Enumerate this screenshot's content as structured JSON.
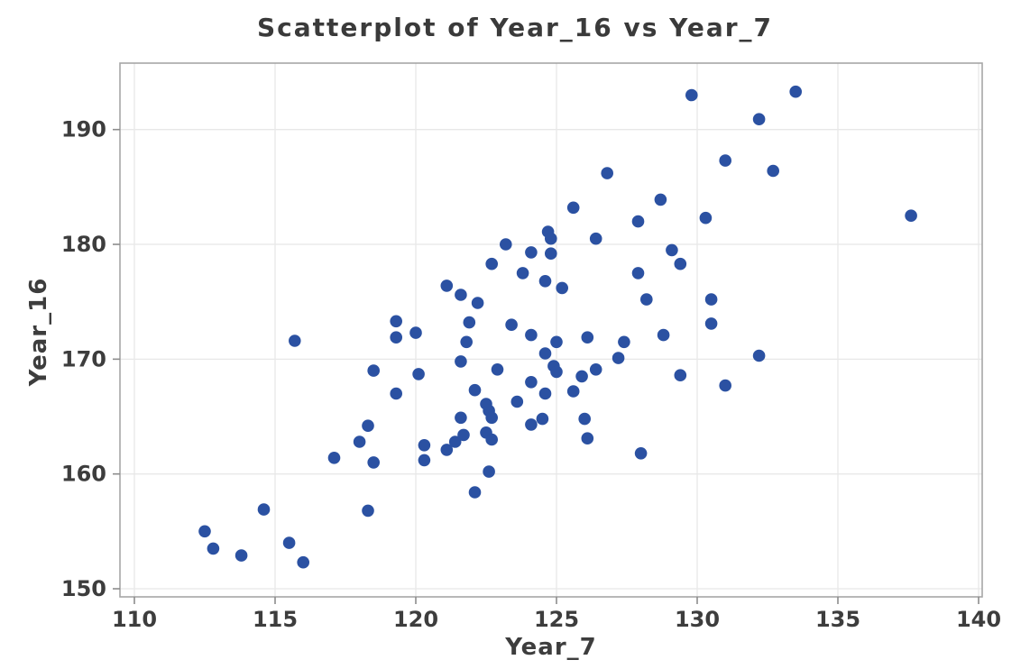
{
  "title": "Scatterplot of Year_16 vs Year_7",
  "colors": {
    "marker": "#2b51a2",
    "frame": "#a6a6a6",
    "gridline": "#e8e8e8",
    "tick": "#8c8c8c",
    "text": "#3d3d3d"
  },
  "chart_data": {
    "type": "scatter",
    "title": "Scatterplot of Year_16 vs Year_7",
    "xlabel": "Year_7",
    "ylabel": "Year_16",
    "xlim": [
      109.5,
      140.1
    ],
    "ylim": [
      149.3,
      195.8
    ],
    "x_ticks": [
      110,
      115,
      120,
      125,
      130,
      135,
      140
    ],
    "y_ticks": [
      150,
      160,
      170,
      180,
      190
    ],
    "grid": true,
    "legend": false,
    "marker_color": "#2b51a2",
    "points": [
      [
        112.5,
        155.0
      ],
      [
        112.8,
        153.5
      ],
      [
        113.8,
        152.9
      ],
      [
        114.6,
        156.9
      ],
      [
        115.5,
        154.0
      ],
      [
        116.0,
        152.3
      ],
      [
        115.7,
        171.6
      ],
      [
        117.1,
        161.4
      ],
      [
        118.0,
        162.8
      ],
      [
        118.3,
        164.2
      ],
      [
        118.5,
        161.0
      ],
      [
        118.3,
        156.8
      ],
      [
        118.5,
        169.0
      ],
      [
        119.3,
        167.0
      ],
      [
        119.3,
        173.3
      ],
      [
        119.3,
        171.9
      ],
      [
        120.0,
        172.3
      ],
      [
        120.1,
        168.7
      ],
      [
        120.3,
        162.5
      ],
      [
        120.3,
        161.2
      ],
      [
        121.1,
        176.4
      ],
      [
        121.6,
        175.6
      ],
      [
        122.2,
        174.9
      ],
      [
        121.9,
        173.2
      ],
      [
        121.8,
        171.5
      ],
      [
        121.6,
        169.8
      ],
      [
        122.1,
        167.3
      ],
      [
        121.6,
        164.9
      ],
      [
        122.5,
        166.1
      ],
      [
        122.6,
        165.5
      ],
      [
        122.7,
        164.9
      ],
      [
        122.5,
        163.6
      ],
      [
        122.7,
        163.0
      ],
      [
        121.7,
        163.4
      ],
      [
        121.4,
        162.8
      ],
      [
        121.1,
        162.1
      ],
      [
        122.6,
        160.2
      ],
      [
        122.1,
        158.4
      ],
      [
        122.7,
        178.3
      ],
      [
        122.9,
        169.1
      ],
      [
        123.2,
        180.0
      ],
      [
        123.4,
        173.0
      ],
      [
        123.6,
        166.3
      ],
      [
        123.8,
        177.5
      ],
      [
        124.1,
        179.3
      ],
      [
        124.8,
        179.2
      ],
      [
        124.7,
        181.1
      ],
      [
        124.8,
        180.5
      ],
      [
        124.1,
        172.1
      ],
      [
        124.1,
        168.0
      ],
      [
        124.1,
        164.3
      ],
      [
        124.5,
        164.8
      ],
      [
        124.6,
        170.5
      ],
      [
        124.6,
        167.0
      ],
      [
        124.6,
        176.8
      ],
      [
        124.9,
        169.4
      ],
      [
        125.0,
        168.9
      ],
      [
        125.2,
        176.2
      ],
      [
        125.0,
        171.5
      ],
      [
        125.6,
        183.2
      ],
      [
        125.6,
        167.2
      ],
      [
        125.9,
        168.5
      ],
      [
        126.1,
        171.9
      ],
      [
        126.1,
        163.1
      ],
      [
        126.0,
        164.8
      ],
      [
        126.4,
        169.1
      ],
      [
        126.4,
        180.5
      ],
      [
        126.8,
        186.2
      ],
      [
        127.4,
        171.5
      ],
      [
        127.2,
        170.1
      ],
      [
        127.9,
        182.0
      ],
      [
        127.9,
        177.5
      ],
      [
        128.0,
        161.8
      ],
      [
        128.2,
        175.2
      ],
      [
        128.7,
        183.9
      ],
      [
        128.8,
        172.1
      ],
      [
        129.1,
        179.5
      ],
      [
        129.4,
        178.3
      ],
      [
        129.4,
        168.6
      ],
      [
        129.8,
        193.0
      ],
      [
        130.3,
        182.3
      ],
      [
        130.5,
        175.2
      ],
      [
        130.5,
        173.1
      ],
      [
        131.0,
        187.3
      ],
      [
        131.0,
        167.7
      ],
      [
        132.2,
        190.9
      ],
      [
        132.2,
        170.3
      ],
      [
        132.7,
        186.4
      ],
      [
        133.5,
        193.3
      ],
      [
        137.6,
        182.5
      ]
    ]
  }
}
